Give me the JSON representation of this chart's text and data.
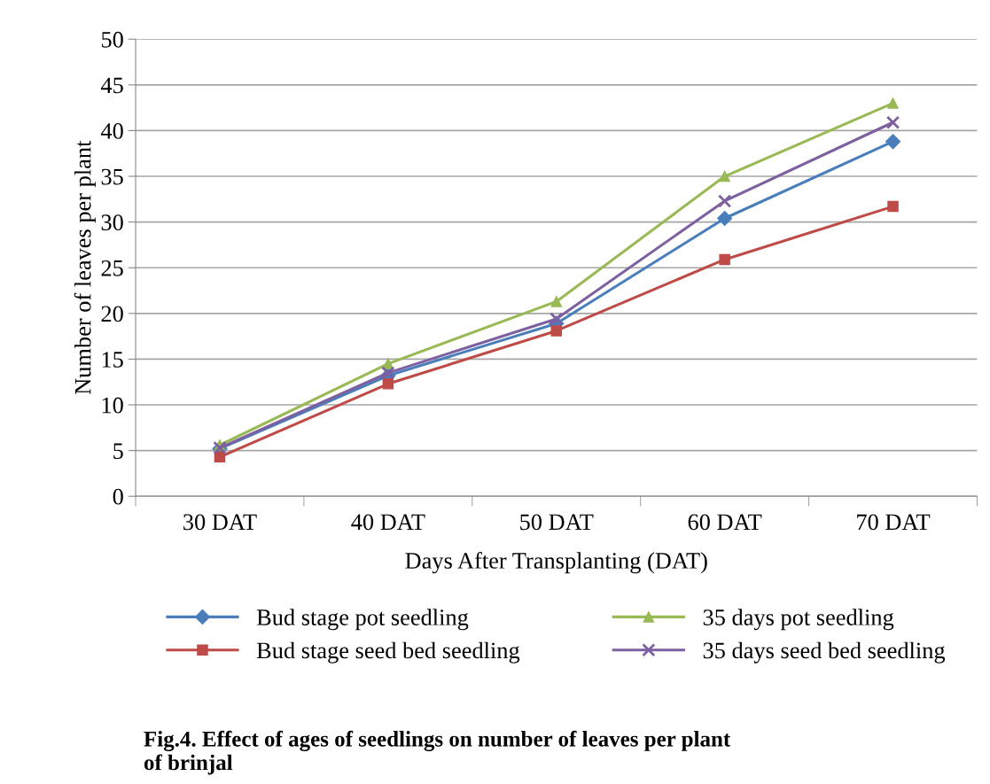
{
  "chart_data": {
    "type": "line",
    "xlabel": "Days After Transplanting (DAT)",
    "ylabel": "Number of leaves per plant",
    "categories": [
      "30 DAT",
      "40 DAT",
      "50 DAT",
      "60 DAT",
      "70 DAT"
    ],
    "series": [
      {
        "name": "Bud stage pot seedling",
        "color": "#4a7ebb",
        "marker": "diamond",
        "values": [
          5.2,
          13.2,
          18.9,
          30.4,
          38.8
        ]
      },
      {
        "name": "Bud stage seed bed seedling",
        "color": "#be4b48",
        "marker": "square",
        "values": [
          4.3,
          12.3,
          18.1,
          25.9,
          31.7
        ]
      },
      {
        "name": "35 days pot seedling",
        "color": "#98b954",
        "marker": "triangle",
        "values": [
          5.6,
          14.5,
          21.3,
          35.0,
          43.0
        ]
      },
      {
        "name": "35 days seed bed seedling",
        "color": "#7d60a0",
        "marker": "cross",
        "values": [
          5.3,
          13.5,
          19.4,
          32.3,
          40.9
        ]
      }
    ],
    "ylim": [
      0,
      50
    ],
    "yticks": [
      0,
      5,
      10,
      15,
      20,
      25,
      30,
      35,
      40,
      45,
      50
    ],
    "grid": "y",
    "legend": "bottom",
    "annotations": [
      "Fig.4. Effect of ages of seedlings on number of leaves per plant\nof brinjal"
    ]
  }
}
